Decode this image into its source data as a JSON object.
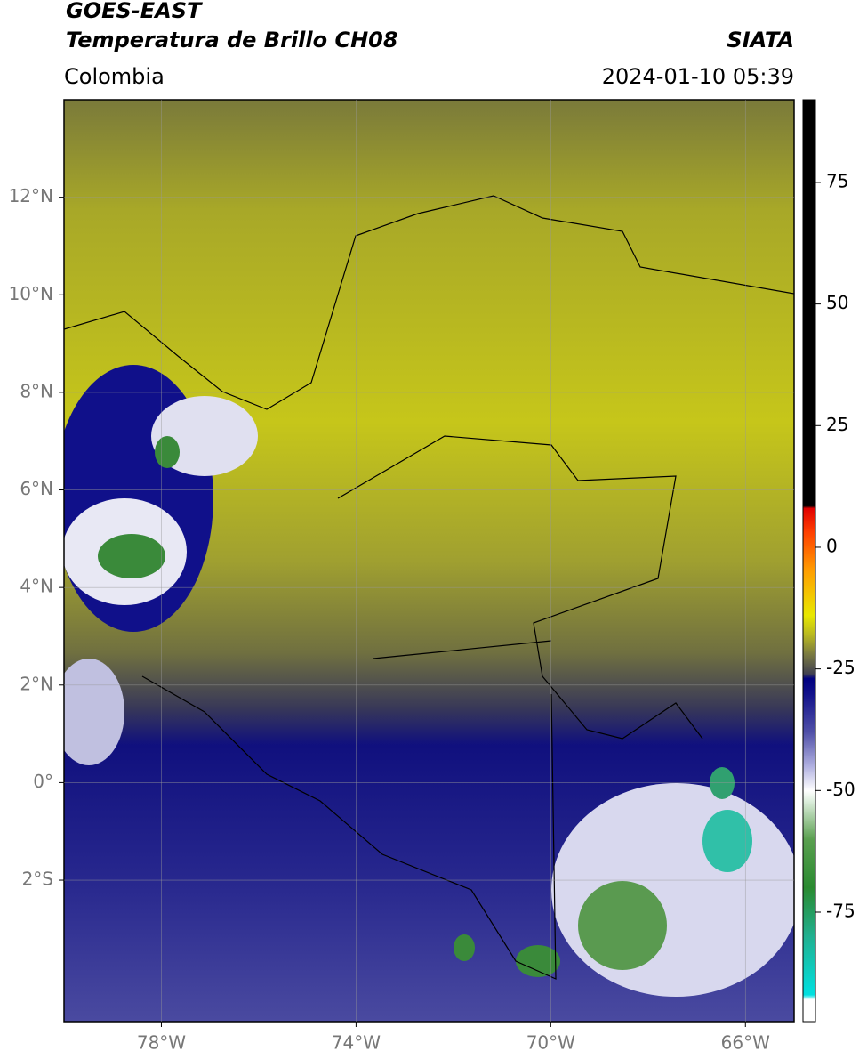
{
  "header": {
    "title_line1": "GOES-EAST",
    "title_line2": "Temperatura de Brillo CH08",
    "source": "SIATA",
    "region": "Colombia",
    "datetime": "2024-01-10 05:39"
  },
  "map": {
    "xlim": [
      -80,
      -65
    ],
    "ylim": [
      -4.9,
      14
    ],
    "xticks": [
      {
        "value": -78,
        "label": "78°W"
      },
      {
        "value": -74,
        "label": "74°W"
      },
      {
        "value": -70,
        "label": "70°W"
      },
      {
        "value": -66,
        "label": "66°W"
      }
    ],
    "yticks": [
      {
        "value": 12,
        "label": "12°N"
      },
      {
        "value": 10,
        "label": "10°N"
      },
      {
        "value": 8,
        "label": "8°N"
      },
      {
        "value": 6,
        "label": "6°N"
      },
      {
        "value": 4,
        "label": "4°N"
      },
      {
        "value": 2,
        "label": "2°N"
      },
      {
        "value": 0,
        "label": "0°"
      },
      {
        "value": -2,
        "label": "2°S"
      }
    ],
    "grid": true
  },
  "colorbar": {
    "lim": [
      -97.5,
      92
    ],
    "ticks": [
      75,
      50,
      25,
      0,
      -25,
      -50,
      -75
    ],
    "colormap": [
      {
        "value": -97.5,
        "color": "#ffffff"
      },
      {
        "value": -93,
        "color": "#ffffff"
      },
      {
        "value": -92,
        "color": "#00e0e0"
      },
      {
        "value": -80,
        "color": "#20b090"
      },
      {
        "value": -70,
        "color": "#2a8a30"
      },
      {
        "value": -60,
        "color": "#5aa050"
      },
      {
        "value": -52,
        "color": "#e0f0e0"
      },
      {
        "value": -50,
        "color": "#ffffff"
      },
      {
        "value": -45,
        "color": "#b0b0e0"
      },
      {
        "value": -38,
        "color": "#5050a8"
      },
      {
        "value": -30,
        "color": "#10108a"
      },
      {
        "value": -27,
        "color": "#000080"
      },
      {
        "value": -26,
        "color": "#404050"
      },
      {
        "value": -22,
        "color": "#7a7a40"
      },
      {
        "value": -18,
        "color": "#b8b820"
      },
      {
        "value": -14,
        "color": "#e8e800"
      },
      {
        "value": -5,
        "color": "#ffa000"
      },
      {
        "value": 3,
        "color": "#ff4000"
      },
      {
        "value": 8,
        "color": "#e00000"
      },
      {
        "value": 8.5,
        "color": "#000000"
      },
      {
        "value": 92,
        "color": "#000000"
      }
    ]
  }
}
